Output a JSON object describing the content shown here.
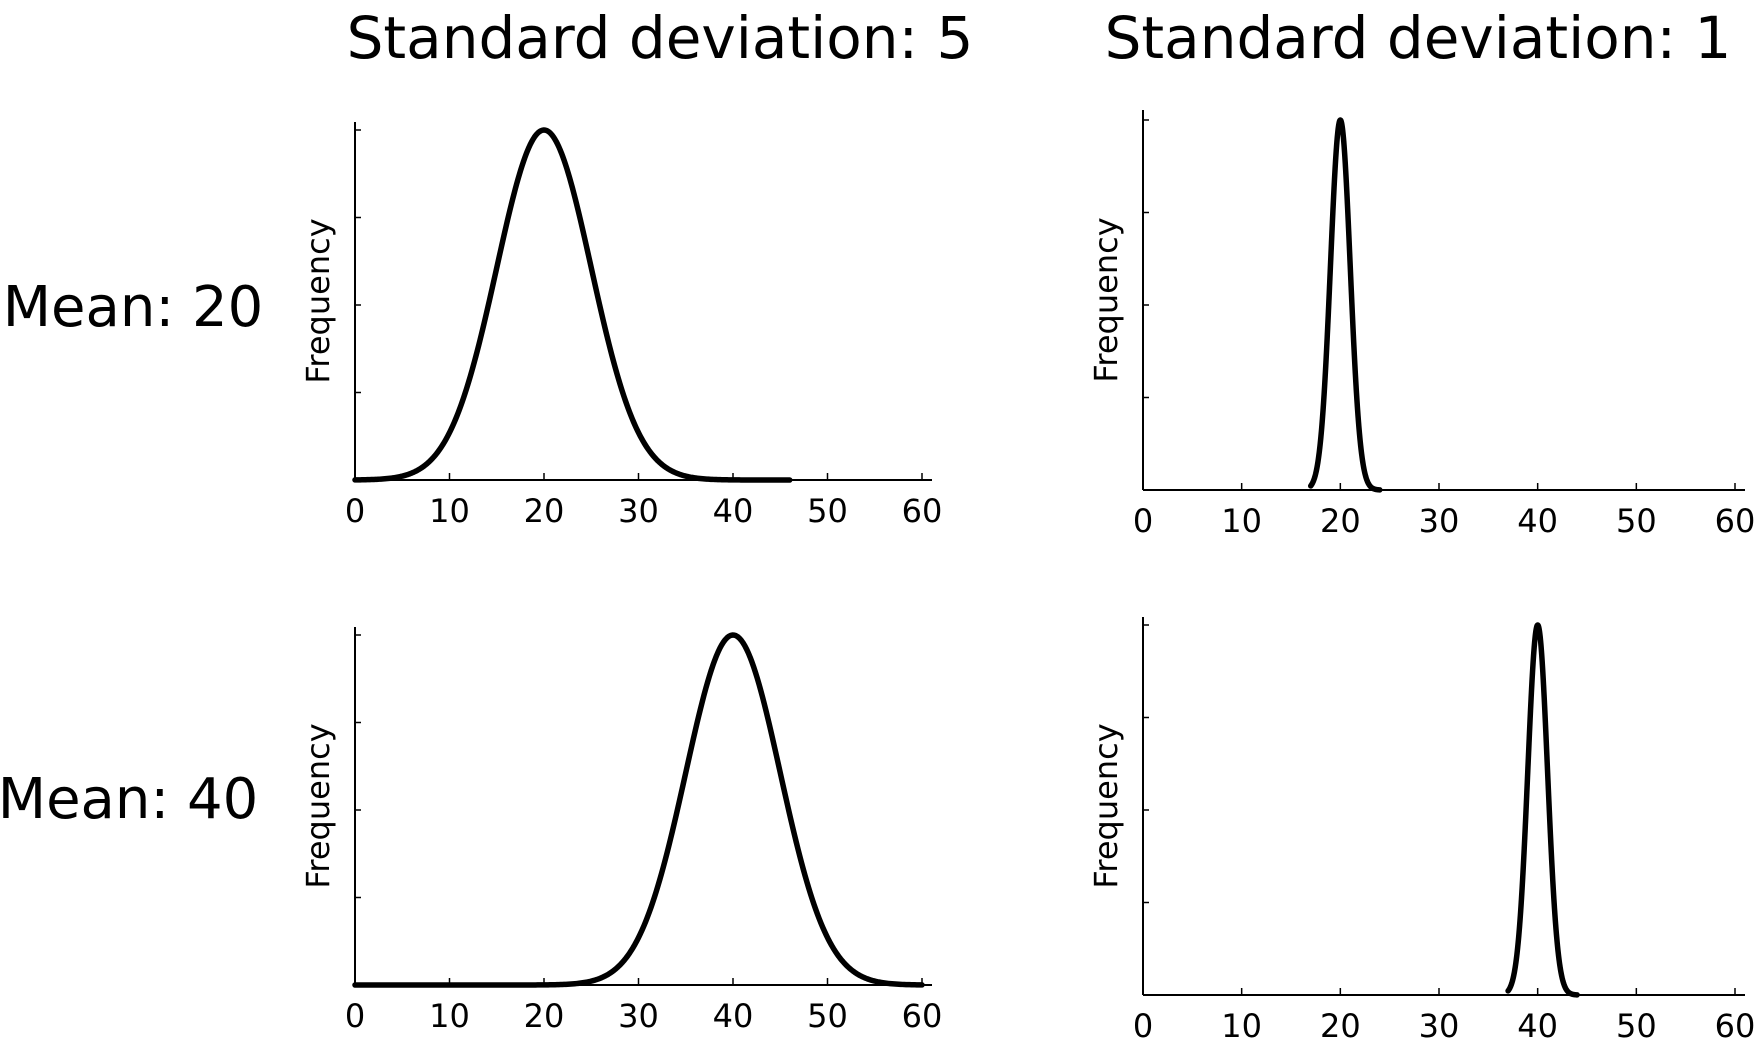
{
  "figure": {
    "column_titles": [
      "Standard deviation:  5",
      "Standard deviation:  1"
    ],
    "row_labels": [
      "Mean: 20",
      "Mean: 40"
    ]
  },
  "chart_data": [
    {
      "type": "line",
      "id": "mean20-sd5",
      "distribution": "normal",
      "mean": 20,
      "sd": 5,
      "x_start": 0,
      "x_end": 46,
      "ylabel": "Frequency",
      "xlim": [
        0,
        60
      ],
      "xticks": [
        "0",
        "10",
        "20",
        "30",
        "40",
        "50",
        "60"
      ],
      "ytick_count": 4,
      "grid": false,
      "peak_x": 20
    },
    {
      "type": "line",
      "id": "mean20-sd1",
      "distribution": "normal",
      "mean": 20,
      "sd": 1,
      "x_start": 17,
      "x_end": 24,
      "ylabel": "Frequency",
      "xlim": [
        0,
        60
      ],
      "xticks": [
        "0",
        "10",
        "20",
        "30",
        "40",
        "50",
        "60"
      ],
      "ytick_count": 4,
      "grid": false,
      "peak_x": 20
    },
    {
      "type": "line",
      "id": "mean40-sd5",
      "distribution": "normal",
      "mean": 40,
      "sd": 5,
      "x_start": 0,
      "x_end": 60,
      "ylabel": "Frequency",
      "xlim": [
        0,
        60
      ],
      "xticks": [
        "0",
        "10",
        "20",
        "30",
        "40",
        "50",
        "60"
      ],
      "ytick_count": 4,
      "grid": false,
      "peak_x": 40
    },
    {
      "type": "line",
      "id": "mean40-sd1",
      "distribution": "normal",
      "mean": 40,
      "sd": 1,
      "x_start": 37,
      "x_end": 44,
      "ylabel": "Frequency",
      "xlim": [
        0,
        60
      ],
      "xticks": [
        "0",
        "10",
        "20",
        "30",
        "40",
        "50",
        "60"
      ],
      "ytick_count": 4,
      "grid": false,
      "peak_x": 40
    }
  ]
}
